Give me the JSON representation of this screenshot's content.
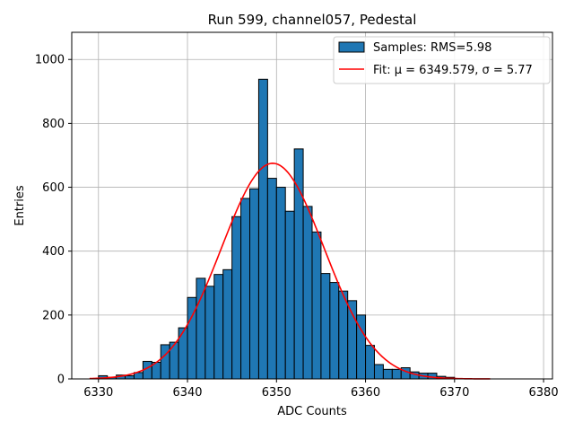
{
  "chart_data": {
    "type": "bar",
    "title": "Run 599, channel057, Pedestal",
    "xlabel": "ADC Counts",
    "ylabel": "Entries",
    "xlim": [
      6327,
      6381
    ],
    "ylim": [
      0,
      1085
    ],
    "xticks": [
      6330,
      6340,
      6350,
      6360,
      6370,
      6380
    ],
    "yticks": [
      0,
      200,
      400,
      600,
      800,
      1000
    ],
    "grid": true,
    "legend_position": "top-right",
    "bar_color": "#1f77b4",
    "fit_color": "#ff0000",
    "histogram": {
      "name": "Samples: RMS=5.98",
      "bin_width": 1,
      "bin_start": 6330,
      "counts": [
        10,
        5,
        12,
        10,
        20,
        55,
        52,
        107,
        115,
        160,
        255,
        315,
        290,
        327,
        342,
        508,
        565,
        595,
        938,
        628,
        600,
        525,
        720,
        540,
        460,
        330,
        302,
        275,
        245,
        200,
        105,
        45,
        30,
        30,
        35,
        22,
        18,
        18,
        8,
        5
      ]
    },
    "fit": {
      "name": "Fit: μ = 6349.579, σ = 5.77",
      "mu": 6349.579,
      "sigma": 5.77,
      "amplitude": 675,
      "x_range": [
        6329,
        6374
      ]
    }
  }
}
